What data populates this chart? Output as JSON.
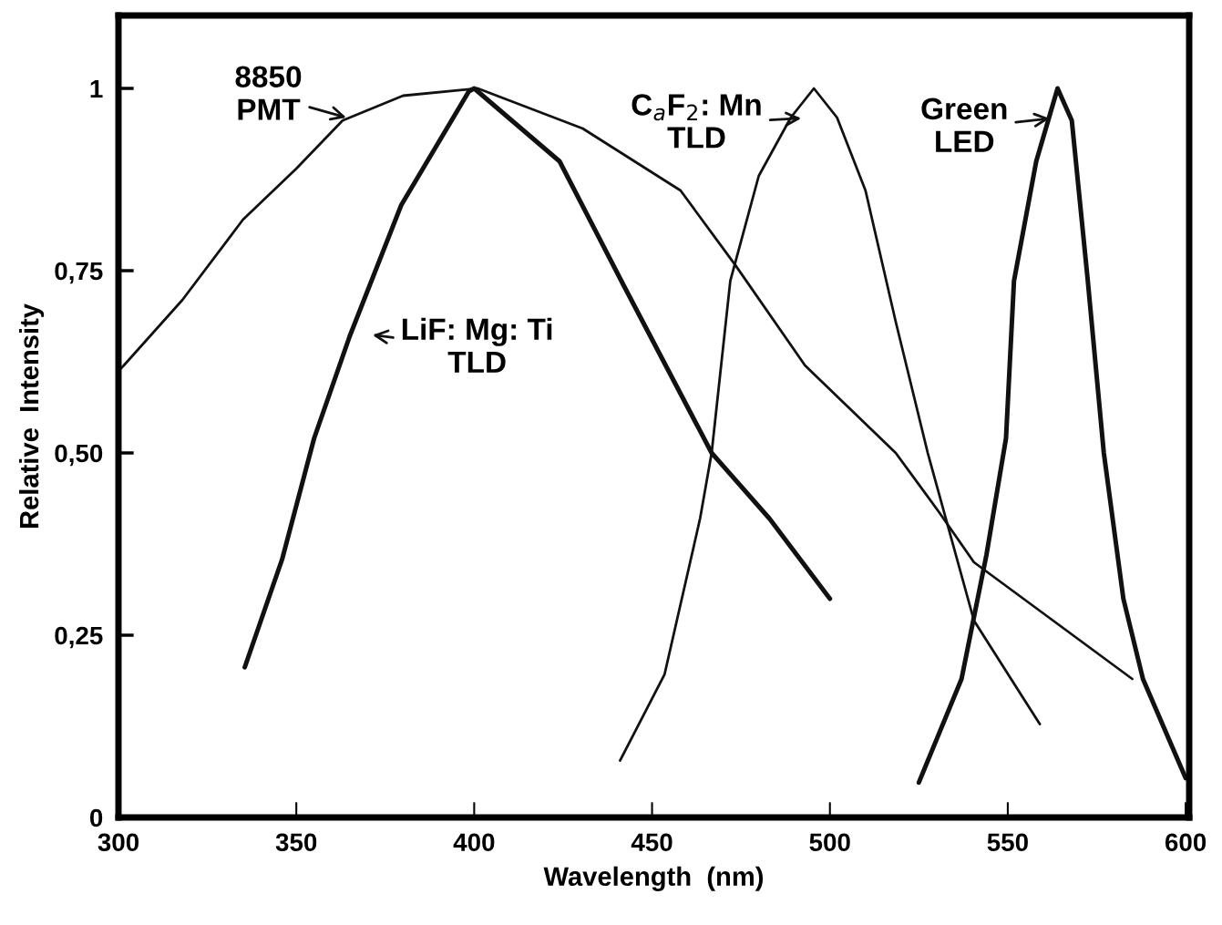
{
  "chart_data": {
    "type": "line",
    "xlabel": "Wavelength  (nm)",
    "ylabel": "Relative  Intensity",
    "xlim": [
      300,
      601
    ],
    "ylim": [
      0,
      1.1
    ],
    "xticks": [
      300,
      350,
      400,
      450,
      500,
      550,
      600
    ],
    "yticks": [
      {
        "value": 0,
        "label": "0"
      },
      {
        "value": 0.25,
        "label": "0,25"
      },
      {
        "value": 0.5,
        "label": "0,50"
      },
      {
        "value": 0.75,
        "label": "0,75"
      },
      {
        "value": 1,
        "label": "1"
      }
    ],
    "grid": false,
    "legend": false,
    "marker": "none",
    "line_style": "solid",
    "series": [
      {
        "color": "#111111",
        "x": [
          300.5,
          301.5,
          318,
          335,
          350,
          363,
          380,
          401,
          430.5,
          458,
          473.5,
          493,
          518.5,
          530.5,
          540.5,
          585
        ],
        "values": [
          0.615,
          0.62,
          0.71,
          0.82,
          0.89,
          0.956,
          0.99,
          1.0,
          0.945,
          0.86,
          0.757,
          0.62,
          0.5,
          0.42,
          0.35,
          0.19
        ]
      },
      {
        "color": "#111111",
        "x": [
          335.5,
          346,
          355,
          365,
          379.5,
          398.5,
          400,
          424,
          442,
          466.75,
          483,
          500
        ],
        "values": [
          0.206,
          0.354,
          0.52,
          0.66,
          0.84,
          0.996,
          1.0,
          0.9,
          0.73,
          0.5,
          0.41,
          0.3
        ]
      },
      {
        "color": "#111111",
        "x": [
          441,
          453.5,
          463.5,
          466.75,
          472,
          480,
          489,
          495.5,
          502,
          510,
          518.5,
          527.5,
          540.5,
          559
        ],
        "values": [
          0.078,
          0.196,
          0.41,
          0.5,
          0.736,
          0.88,
          0.96,
          1.0,
          0.96,
          0.86,
          0.68,
          0.5,
          0.27,
          0.128
        ]
      },
      {
        "color": "#111111",
        "x": [
          525,
          537,
          544,
          549.5,
          551.75,
          558,
          564,
          568,
          572.5,
          577,
          582.5,
          588,
          600
        ],
        "values": [
          0.048,
          0.19,
          0.36,
          0.52,
          0.736,
          0.9,
          1.0,
          0.956,
          0.736,
          0.5,
          0.3,
          0.19,
          0.054
        ]
      }
    ],
    "annotations": [
      "8850\nPMT",
      "LiF: Mg: Ti\nTLD",
      "C$_{a}$F$_{2}$: Mn\nTLD",
      "Green\nLED"
    ]
  }
}
